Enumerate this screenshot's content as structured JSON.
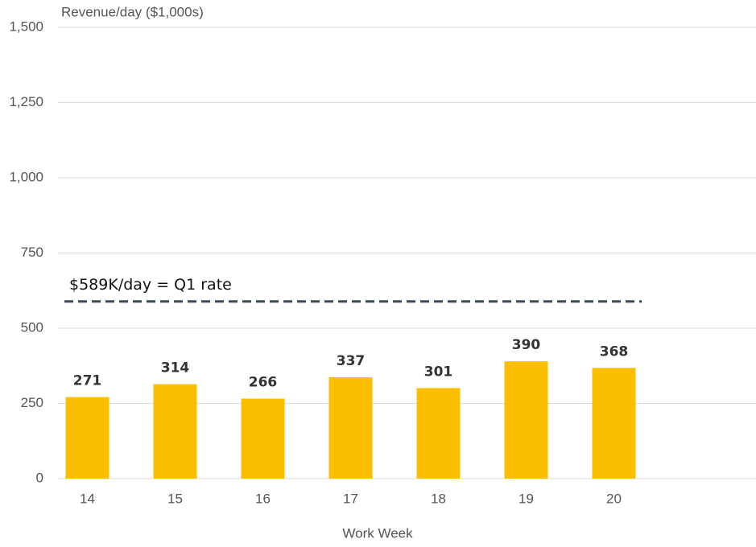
{
  "chart_data": {
    "type": "bar",
    "y_axis_label": "Revenue/day ($1,000s)",
    "x_axis_label": "Work Week",
    "categories": [
      "14",
      "15",
      "16",
      "17",
      "18",
      "19",
      "20"
    ],
    "values": [
      271,
      314,
      266,
      337,
      301,
      390,
      368
    ],
    "color": "#fbbf00",
    "ylim": [
      0,
      1500
    ],
    "yticks": [
      0,
      250,
      500,
      750,
      {
        "value": 1000,
        "label": "1,000"
      },
      {
        "value": 1250,
        "label": "1,250"
      },
      {
        "value": 1500,
        "label": "1,500"
      }
    ],
    "grid": true,
    "reference_lines": [
      {
        "value": 589,
        "label": "$589K/day = Q1 rate",
        "color": "#3d4a5c"
      }
    ]
  }
}
